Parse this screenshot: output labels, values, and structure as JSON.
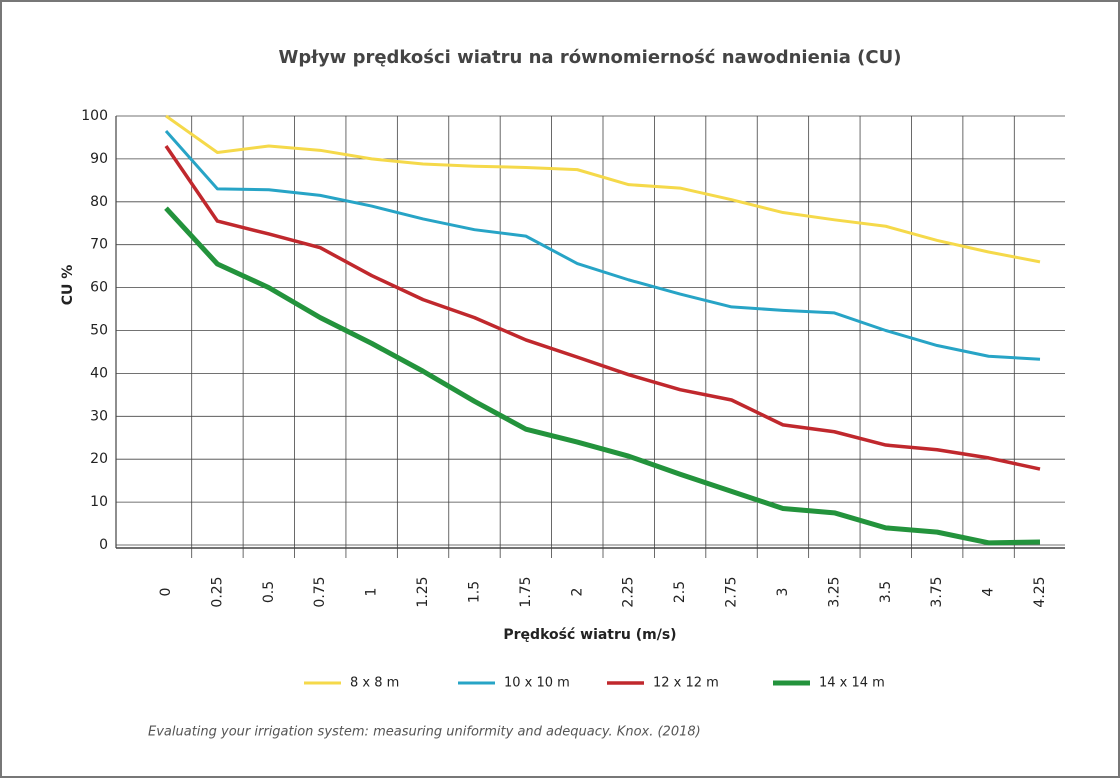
{
  "chart_data": {
    "type": "line",
    "title": "Wpływ prędkości wiatru na równomierność nawodnienia (CU)",
    "x_label": "Prędkość wiatru (m/s)",
    "y_label": "CU %",
    "source": "Evaluating your irrigation system: measuring uniformity and adequacy. Knox. (2018)",
    "categories": [
      "0",
      "0.25",
      "0.5",
      "0.75",
      "1",
      "1.25",
      "1.5",
      "1.75",
      "2",
      "2.25",
      "2.5",
      "2.75",
      "3",
      "3.25",
      "3.5",
      "3.75",
      "4",
      "4.25"
    ],
    "series": [
      {
        "name": "8 x 8 m",
        "color": "#f5d94a",
        "values": [
          100,
          91.5,
          93,
          92,
          90,
          88.8,
          88.3,
          88,
          87.5,
          84,
          83.2,
          80.5,
          77.5,
          75.8,
          74.3,
          71,
          68.3,
          66
        ]
      },
      {
        "name": "10 x 10 m",
        "color": "#27a4c6",
        "values": [
          96.5,
          83,
          82.8,
          81.5,
          79,
          76,
          73.5,
          72,
          65.6,
          61.8,
          58.5,
          55.5,
          54.7,
          54.1,
          50,
          46.5,
          44,
          43.3
        ]
      },
      {
        "name": "12 x 12 m",
        "color": "#c0282d",
        "values": [
          93,
          75.5,
          72.5,
          69.3,
          62.8,
          57.2,
          53,
          47.8,
          43.8,
          39.7,
          36.2,
          33.8,
          28,
          26.4,
          23.3,
          22.2,
          20.3,
          17.7
        ]
      },
      {
        "name": "14 x 14 m",
        "color": "#23933c",
        "values": [
          78.5,
          65.5,
          60,
          53,
          47,
          40.5,
          33.5,
          27,
          24,
          20.7,
          16.5,
          12.5,
          8.5,
          7.5,
          4,
          3,
          0.5,
          0.7
        ]
      }
    ],
    "ylim": [
      0,
      100
    ],
    "yticks": [
      0,
      10,
      20,
      30,
      40,
      50,
      60,
      70,
      80,
      90,
      100
    ],
    "grid": true
  }
}
